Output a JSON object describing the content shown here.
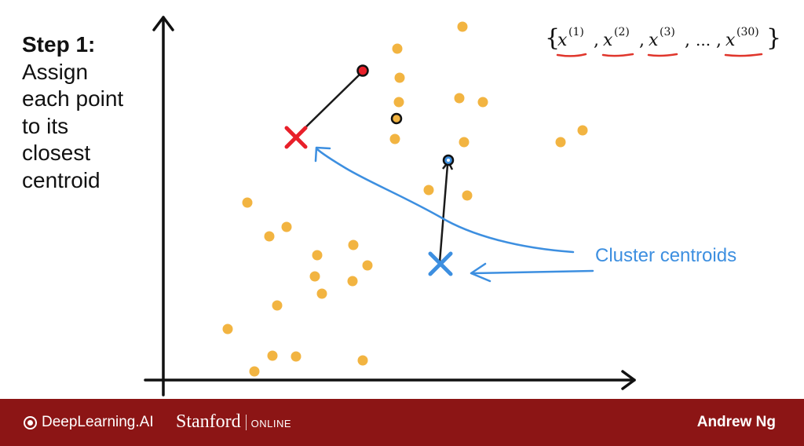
{
  "step": {
    "title": "Step 1:",
    "lines": [
      "Assign",
      "each point",
      "to its",
      "closest",
      "centroid"
    ]
  },
  "dataset": {
    "symbol": "x",
    "indices": [
      "(1)",
      "(2)",
      "(3)",
      "(30)"
    ],
    "ellipsis": "..."
  },
  "annotation": {
    "label": "Cluster centroids"
  },
  "footer": {
    "logo_text": "DeepLearning.AI",
    "stanford_name": "Stanford",
    "stanford_online": "ONLINE",
    "author": "Andrew Ng"
  },
  "colors": {
    "point": "#f2b441",
    "red_centroid": "#e8202a",
    "blue_centroid": "#3d8fe0",
    "annotation": "#3d8fe0",
    "underline": "#e0362c",
    "footer_bg": "#8c1515"
  },
  "icons": {
    "red_centroid": "red-x-centroid-icon",
    "blue_centroid": "blue-x-centroid-icon",
    "logo": "deeplearning-ai-logo-icon"
  }
}
